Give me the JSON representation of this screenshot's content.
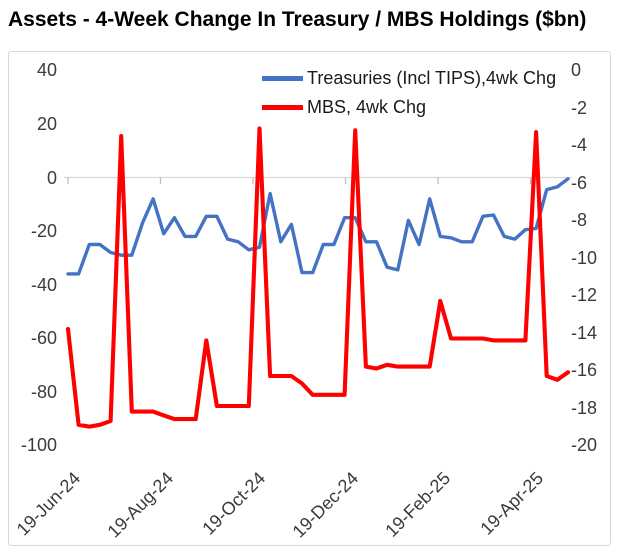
{
  "title": "Assets - 4-Week Change In Treasury / MBS Holdings ($bn)",
  "colors": {
    "treasuries_line": "#4472C4",
    "mbs_line": "#FE0000",
    "gridline": "#D9D9D9",
    "frame_border": "#D9D9D9",
    "axis_text": "#3b3b3b"
  },
  "chart_data": {
    "type": "line",
    "title": "Assets - 4-Week Change In Treasury / MBS Holdings ($bn)",
    "x_description": "48 weekly observations from 19-Jun-24 to early May-25",
    "x_tick_labels": [
      "19-Jun-24",
      "19-Aug-24",
      "19-Oct-24",
      "19-Dec-24",
      "19-Feb-25",
      "19-Apr-25"
    ],
    "x_tick_rotation_deg": -45,
    "left_axis": {
      "ticks": [
        40,
        20,
        0,
        -20,
        -40,
        -60,
        -80,
        -100
      ],
      "range": [
        -100,
        40
      ]
    },
    "right_axis": {
      "ticks": [
        0,
        -2,
        -4,
        -6,
        -8,
        -10,
        -12,
        -14,
        -16,
        -18,
        -20
      ],
      "range": [
        -20,
        0
      ]
    },
    "gridlines": "zero-line-only",
    "legend_position": "top-inside",
    "series": [
      {
        "name": "Treasuries (Incl TIPS),4wk Chg",
        "axis": "left",
        "color": "#4472C4",
        "values": [
          -36,
          -36,
          -25,
          -25,
          -28,
          -29,
          -29,
          -17,
          -8,
          -21,
          -15,
          -22,
          -22,
          -14.5,
          -14.5,
          -23,
          -24,
          -27,
          -26,
          -6,
          -24,
          -17.5,
          -35.5,
          -35.5,
          -25,
          -25,
          -15,
          -15,
          -24,
          -24,
          -33.5,
          -34.5,
          -16,
          -25,
          -8,
          -22,
          -22.5,
          -24,
          -24,
          -14.5,
          -14,
          -22,
          -23,
          -19.5,
          -19,
          -4.5,
          -3.5,
          -0.5
        ]
      },
      {
        "name": "MBS, 4wk Chg",
        "axis": "right",
        "color": "#FE0000",
        "values": [
          -13.8,
          -18.9,
          -19,
          -18.9,
          -18.7,
          -3.5,
          -18.2,
          -18.2,
          -18.2,
          -18.4,
          -18.6,
          -18.6,
          -18.6,
          -14.4,
          -17.9,
          -17.9,
          -17.9,
          -17.9,
          -3.1,
          -16.3,
          -16.3,
          -16.3,
          -16.7,
          -17.3,
          -17.3,
          -17.3,
          -17.3,
          -3.2,
          -15.8,
          -15.9,
          -15.7,
          -15.8,
          -15.8,
          -15.8,
          -15.8,
          -12.3,
          -14.3,
          -14.3,
          -14.3,
          -14.3,
          -14.4,
          -14.4,
          -14.4,
          -14.4,
          -3.3,
          -16.3,
          -16.5,
          -16.1
        ]
      }
    ]
  }
}
